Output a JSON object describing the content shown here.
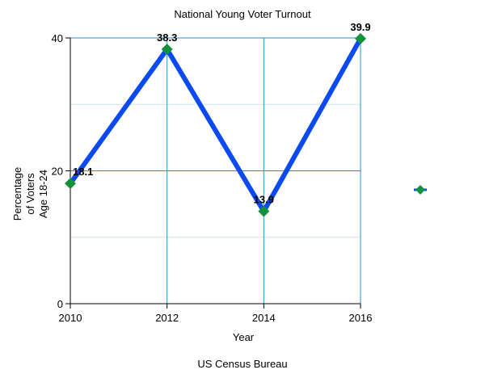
{
  "chart_data": {
    "type": "line",
    "title": "National Young Voter Turnout",
    "xlabel": "Year",
    "ylabel_lines": [
      "Percentage",
      "of Voters",
      "Age 18-24"
    ],
    "source": "US Census Bureau",
    "x": [
      2010,
      2012,
      2014,
      2016
    ],
    "xlim": [
      2010,
      2016
    ],
    "ylim": [
      0,
      40
    ],
    "x_ticks": [
      "2010",
      "2012",
      "2014",
      "2016"
    ],
    "y_ticks": [
      "0",
      "20",
      "40"
    ],
    "grid": true,
    "legend_position": "right",
    "series": [
      {
        "values": [
          18.1,
          38.3,
          13.9,
          39.9
        ],
        "data_labels": [
          "18.1",
          "38.3",
          "13.9",
          "39.9"
        ],
        "line_color": "#0a4af0",
        "marker": "diamond",
        "marker_color": "#12923a"
      }
    ],
    "colors": {
      "grid_major": "#2a8fc4",
      "grid_minor": "#cfe3ef",
      "axis": "#000000"
    }
  }
}
